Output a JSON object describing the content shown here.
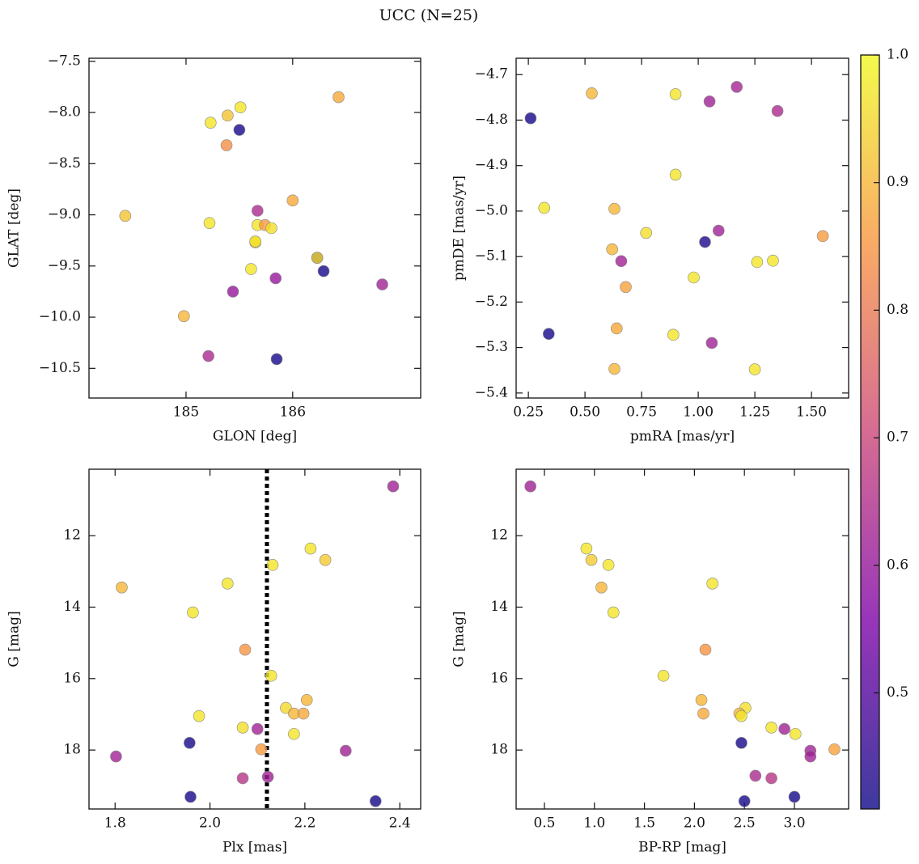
{
  "title": "UCC (N=25)",
  "chart_data": [
    {
      "type": "scatter",
      "xlabel": "GLON [deg]",
      "ylabel": "GLAT [deg]",
      "xlim": [
        184.09,
        187.2
      ],
      "ylim": [
        -10.79,
        -7.47
      ],
      "xticks": [
        185,
        186
      ],
      "yticks": [
        {
          "value": -7.5,
          "label": "−7.5"
        },
        {
          "value": -8,
          "label": "−8.0"
        },
        {
          "value": -8.5,
          "label": "−8.5"
        },
        {
          "value": -9,
          "label": "−9.0"
        },
        {
          "value": -9.5,
          "label": "−9.5"
        },
        {
          "value": -10,
          "label": "−10.0"
        },
        {
          "value": -10.5,
          "label": "−10.5"
        }
      ],
      "x": [
        184.43,
        184.98,
        185.21,
        185.22,
        185.23,
        185.39,
        185.38,
        185.51,
        185.5,
        185.44,
        185.61,
        185.65,
        185.65,
        185.67,
        185.67,
        185.74,
        185.8,
        185.84,
        185.85,
        186.0,
        186.23,
        186.23,
        186.29,
        186.43,
        186.84
      ],
      "y": [
        -9.01,
        -9.99,
        -10.38,
        -9.08,
        -8.1,
        -8.03,
        -8.32,
        -7.95,
        -8.17,
        -9.75,
        -9.53,
        -9.27,
        -9.26,
        -8.96,
        -9.1,
        -9.1,
        -9.13,
        -9.62,
        -10.41,
        -8.86,
        -9.42,
        -9.42,
        -9.55,
        -7.85,
        -9.68
      ],
      "c": [
        0.92,
        0.9,
        0.64,
        0.97,
        0.97,
        0.92,
        0.84,
        0.97,
        0.42,
        0.6,
        0.97,
        0.92,
        0.97,
        0.64,
        0.97,
        0.86,
        0.96,
        0.6,
        0.42,
        0.88,
        0.42,
        0.95,
        0.42,
        0.88,
        0.62
      ]
    },
    {
      "type": "scatter",
      "xlabel": "pmRA [mas/yr]",
      "ylabel": "pmDE [mas/yr]",
      "xlim": [
        0.196,
        1.664
      ],
      "ylim": [
        -5.411,
        -4.664
      ],
      "xticks": [
        0.25,
        {
          "value": 0.5,
          "label": "0.50"
        },
        0.75,
        {
          "value": 1,
          "label": "1.00"
        },
        1.25,
        {
          "value": 1.5,
          "label": "1.50"
        }
      ],
      "yticks": [
        {
          "value": -4.7,
          "label": "−4.7"
        },
        {
          "value": -4.8,
          "label": "−4.8"
        },
        {
          "value": -4.9,
          "label": "−4.9"
        },
        {
          "value": -5,
          "label": "−5.0"
        },
        {
          "value": -5.1,
          "label": "−5.1"
        },
        {
          "value": -5.2,
          "label": "−5.2"
        },
        {
          "value": -5.3,
          "label": "−5.3"
        },
        {
          "value": -5.4,
          "label": "−5.4"
        }
      ],
      "x": [
        0.53,
        0.9,
        1.17,
        1.05,
        1.35,
        0.26,
        0.9,
        0.32,
        0.63,
        0.77,
        1.09,
        1.03,
        1.55,
        0.62,
        0.66,
        1.26,
        1.33,
        0.68,
        0.98,
        0.34,
        0.64,
        0.89,
        1.06,
        0.63,
        1.25
      ],
      "y": [
        -4.741,
        -4.743,
        -4.727,
        -4.759,
        -4.78,
        -4.796,
        -4.92,
        -4.993,
        -4.995,
        -5.048,
        -5.043,
        -5.068,
        -5.055,
        -5.084,
        -5.11,
        -5.112,
        -5.109,
        -5.167,
        -5.146,
        -5.27,
        -5.258,
        -5.272,
        -5.29,
        -5.347,
        -5.348
      ],
      "c": [
        0.9,
        0.97,
        0.63,
        0.62,
        0.64,
        0.42,
        0.97,
        0.97,
        0.9,
        0.96,
        0.62,
        0.43,
        0.86,
        0.9,
        0.62,
        0.97,
        0.97,
        0.87,
        0.97,
        0.42,
        0.88,
        0.97,
        0.62,
        0.9,
        0.97
      ]
    },
    {
      "type": "scatter",
      "xlabel": "Plx [mas]",
      "ylabel": "G [mag]",
      "xlim": [
        1.745,
        2.444
      ],
      "ylim": [
        19.65,
        10.14
      ],
      "vline": 2.12,
      "xticks": [
        1.8,
        {
          "value": 2,
          "label": "2.0"
        },
        2.2,
        2.4
      ],
      "yticks": [
        12,
        14,
        16,
        18
      ],
      "x": [
        1.814,
        1.802,
        1.964,
        1.977,
        1.957,
        1.959,
        2.037,
        2.074,
        2.069,
        2.069,
        2.1,
        2.108,
        2.122,
        2.132,
        2.129,
        2.16,
        2.177,
        2.177,
        2.197,
        2.204,
        2.212,
        2.243,
        2.286,
        2.349,
        2.386
      ],
      "y": [
        13.45,
        18.18,
        14.15,
        17.05,
        17.8,
        19.31,
        13.34,
        15.19,
        17.37,
        18.79,
        17.41,
        17.98,
        18.75,
        12.82,
        15.92,
        16.82,
        16.98,
        17.55,
        16.98,
        16.6,
        12.36,
        12.68,
        18.02,
        19.43,
        10.62
      ],
      "c": [
        0.9,
        0.62,
        0.97,
        0.97,
        0.42,
        0.42,
        0.97,
        0.85,
        0.96,
        0.66,
        0.62,
        0.86,
        0.62,
        0.97,
        0.97,
        0.95,
        0.9,
        0.97,
        0.88,
        0.9,
        0.97,
        0.93,
        0.62,
        0.42,
        0.62
      ]
    },
    {
      "type": "scatter",
      "xlabel": "BP-RP [mag]",
      "ylabel": "G [mag]",
      "xlim": [
        0.217,
        3.542
      ],
      "ylim": [
        19.65,
        10.14
      ],
      "xticks": [
        0.5,
        {
          "value": 1,
          "label": "1.0"
        },
        1.5,
        {
          "value": 2,
          "label": "2.0"
        },
        2.5,
        {
          "value": 3,
          "label": "3.0"
        }
      ],
      "yticks": [
        12,
        14,
        16,
        18
      ],
      "x": [
        0.36,
        0.92,
        0.97,
        1.14,
        1.07,
        1.19,
        2.18,
        2.11,
        1.69,
        2.07,
        2.09,
        2.51,
        2.45,
        2.47,
        2.77,
        2.9,
        3.01,
        2.47,
        3.16,
        3.16,
        3.4,
        2.61,
        2.77,
        2.5,
        3.0
      ],
      "y": [
        10.62,
        12.36,
        12.68,
        12.82,
        13.45,
        14.15,
        13.34,
        15.19,
        15.92,
        16.6,
        16.98,
        16.82,
        16.98,
        17.05,
        17.37,
        17.41,
        17.55,
        17.8,
        18.02,
        18.18,
        17.98,
        18.72,
        18.79,
        19.43,
        19.31
      ],
      "c": [
        0.62,
        0.97,
        0.93,
        0.97,
        0.9,
        0.97,
        0.97,
        0.85,
        0.97,
        0.9,
        0.88,
        0.96,
        0.9,
        0.97,
        0.97,
        0.62,
        0.97,
        0.42,
        0.62,
        0.62,
        0.87,
        0.64,
        0.66,
        0.42,
        0.42
      ]
    },
    {
      "type": "colorbar",
      "cmap": "plasma",
      "clim": [
        0.409,
        1.0
      ],
      "ticks": [
        0.5,
        0.6,
        0.7,
        0.8,
        0.9,
        {
          "value": 1,
          "label": "1.0"
        }
      ]
    }
  ]
}
